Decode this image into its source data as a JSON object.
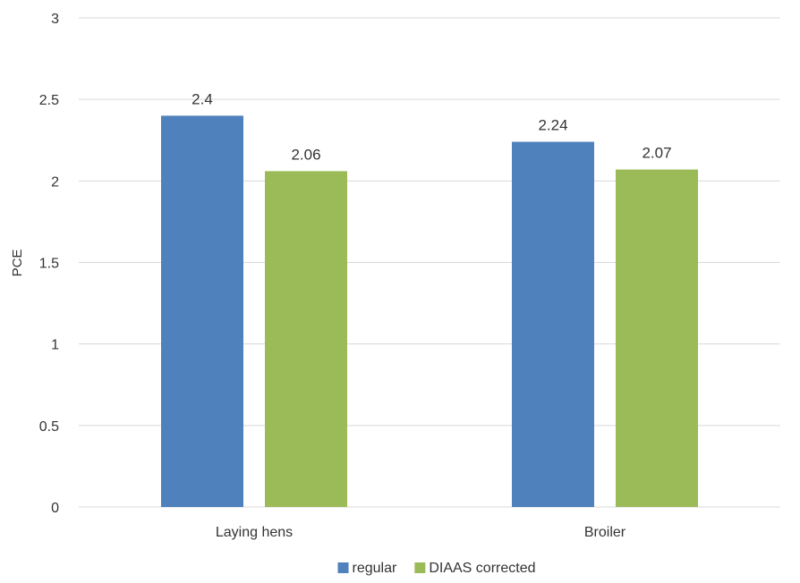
{
  "chart_data": {
    "type": "bar",
    "categories": [
      "Laying hens",
      "Broiler"
    ],
    "series": [
      {
        "name": "regular",
        "values": [
          2.4,
          2.24
        ],
        "labels": [
          "2.4",
          "2.24"
        ],
        "color": "#4f81bd"
      },
      {
        "name": "DIAAS corrected",
        "values": [
          2.06,
          2.07
        ],
        "labels": [
          "2.06",
          "2.07"
        ],
        "color": "#9bbb59"
      }
    ],
    "title": "",
    "xlabel": "",
    "ylabel": "PCE",
    "ylim": [
      0,
      3
    ],
    "yticks": [
      0,
      0.5,
      1,
      1.5,
      2,
      2.5,
      3
    ],
    "ytick_labels": [
      "0",
      "0.5",
      "1",
      "1.5",
      "2",
      "2.5",
      "3"
    ],
    "grid": true,
    "legend": "bottom",
    "gridline_color": "#d9d9d9",
    "text_color": "#333333"
  }
}
